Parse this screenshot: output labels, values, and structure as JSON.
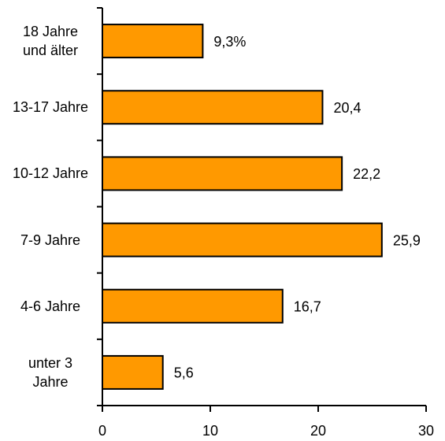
{
  "chart_data": {
    "type": "hbar",
    "categories": [
      "18 Jahre und älter",
      "13-17 Jahre",
      "10-12 Jahre",
      "7-9 Jahre",
      "4-6 Jahre",
      "unter 3 Jahre"
    ],
    "values": [
      9.3,
      20.4,
      22.2,
      25.9,
      16.7,
      5.6
    ],
    "value_labels": [
      "9,3%",
      "20,4",
      "22,2",
      "25,9",
      "16,7",
      "5,6"
    ],
    "color": "#ff9900",
    "xlim": [
      0,
      30
    ],
    "xticks": [
      0,
      10,
      20,
      30
    ],
    "grid": false
  }
}
